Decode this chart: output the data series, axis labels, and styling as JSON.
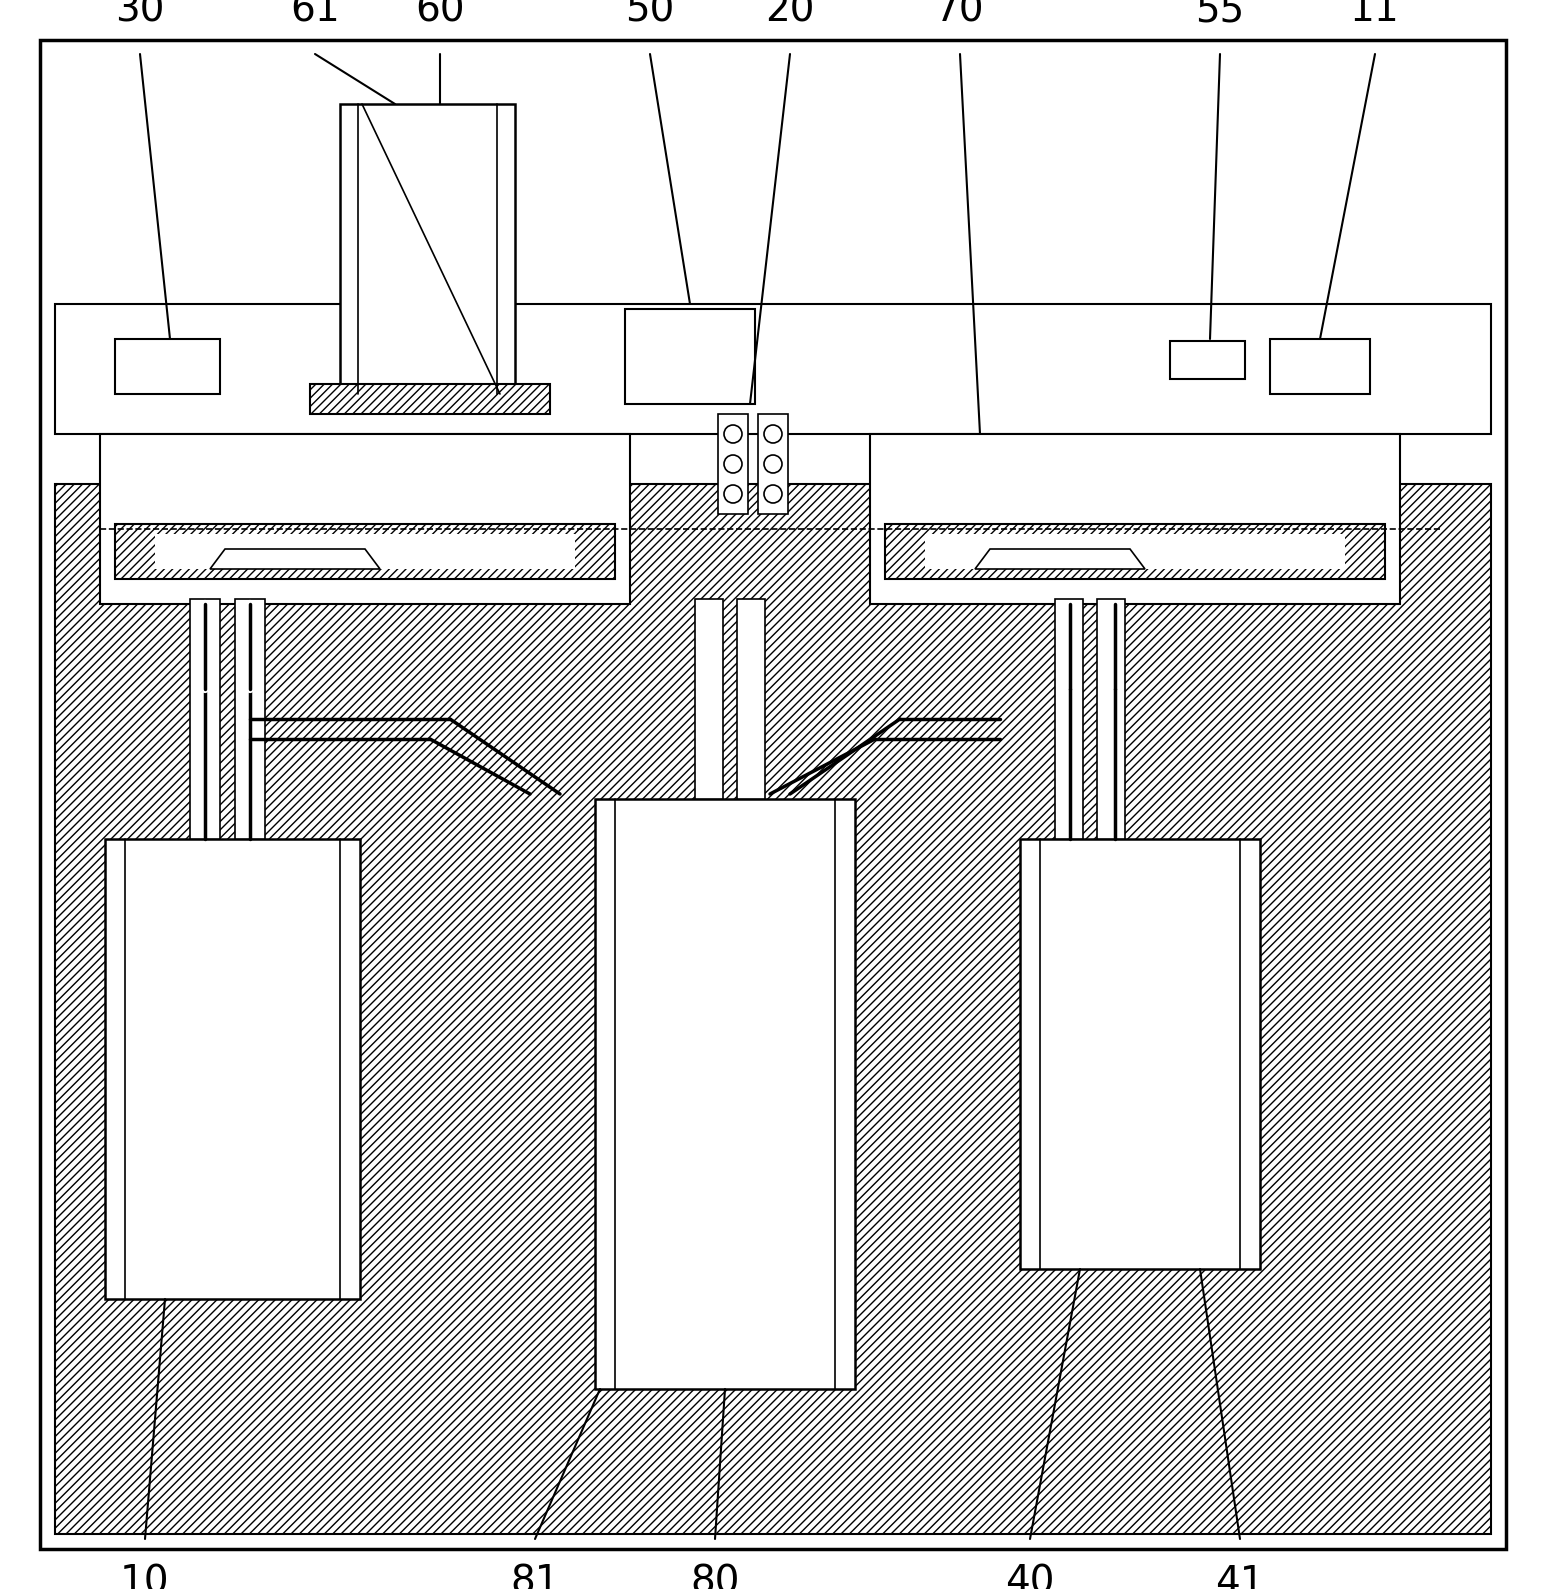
{
  "fig_width": 15.46,
  "fig_height": 15.89,
  "bg_color": "#ffffff",
  "lc": "#000000",
  "lw": 1.5,
  "lw_thin": 1.0,
  "lw_thick": 2.0
}
